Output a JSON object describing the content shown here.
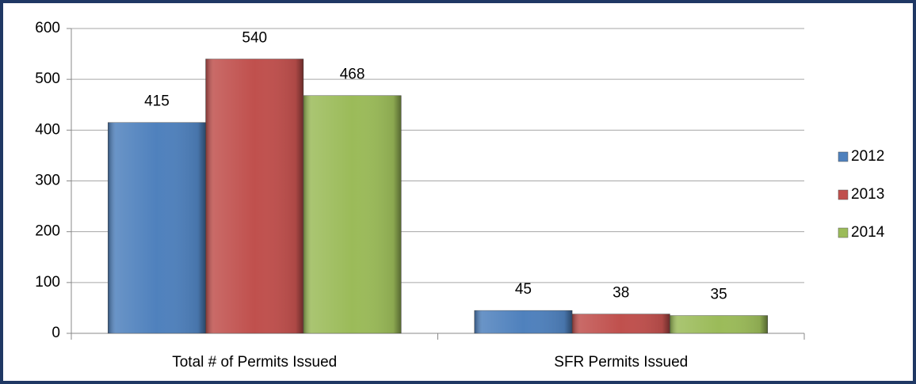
{
  "chart_data": {
    "type": "bar",
    "categories": [
      "Total # of Permits Issued",
      "SFR Permits Issued"
    ],
    "series": [
      {
        "name": "2012",
        "color": "#4f81bd",
        "values": [
          415,
          45
        ]
      },
      {
        "name": "2013",
        "color": "#c0504d",
        "values": [
          540,
          38
        ]
      },
      {
        "name": "2014",
        "color": "#9bbb59",
        "values": [
          468,
          35
        ]
      }
    ],
    "ylim": [
      0,
      600
    ],
    "yticks": [
      0,
      100,
      200,
      300,
      400,
      500,
      600
    ],
    "grid": true,
    "legend": "right"
  }
}
